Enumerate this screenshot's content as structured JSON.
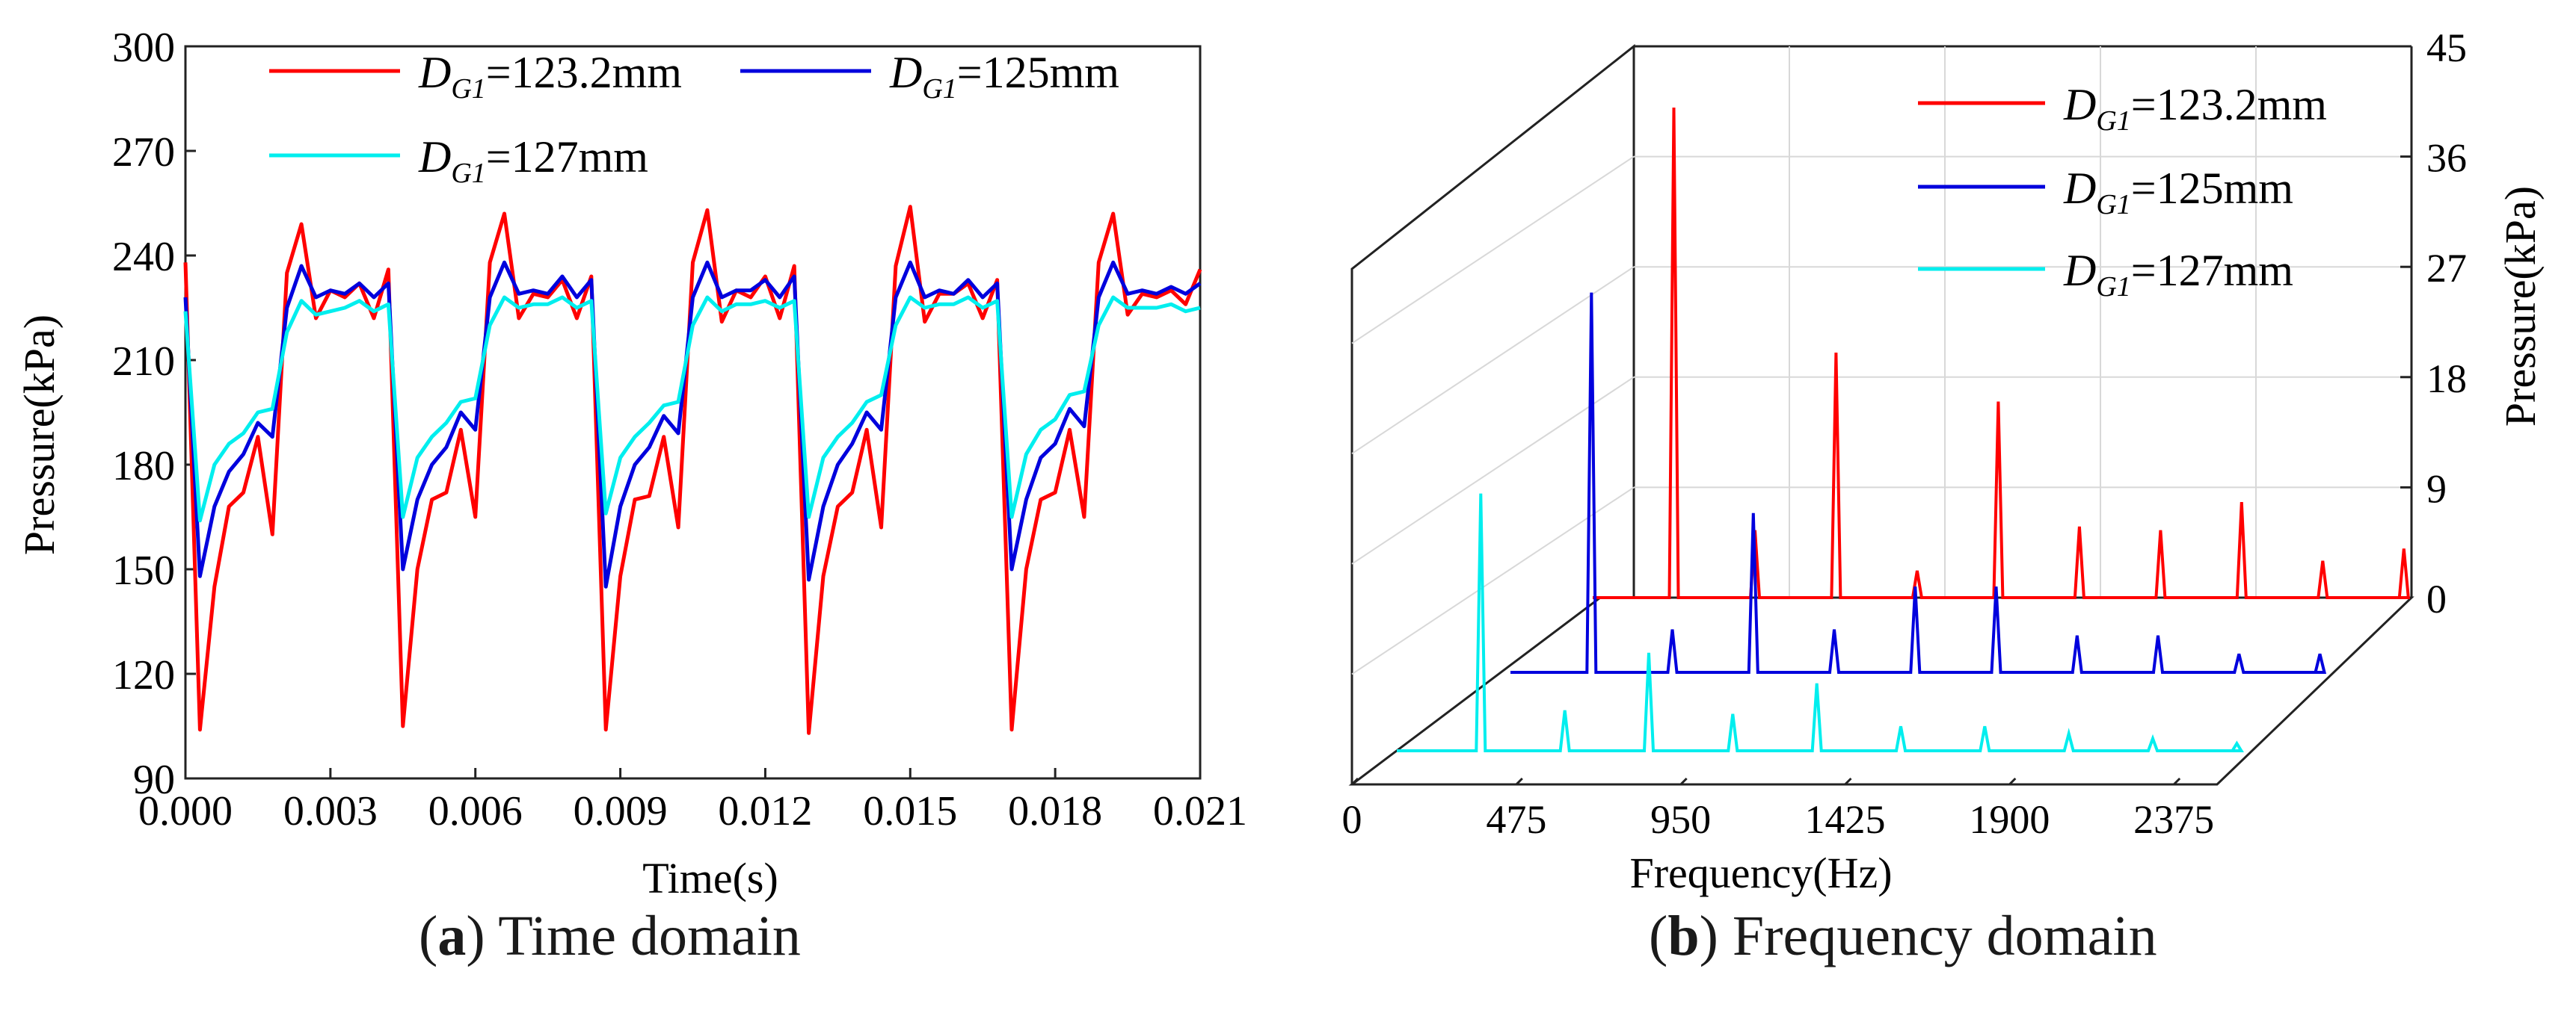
{
  "panel_a": {
    "caption_letter": "a",
    "caption_text": " Time domain",
    "legend_sub": "G1",
    "legend_labels": [
      "=123.2mm",
      "=125mm",
      "=127mm"
    ]
  },
  "panel_b": {
    "caption_letter": "b",
    "caption_text": " Frequency domain",
    "legend_sub": "G1",
    "legend_labels": [
      "=123.2mm",
      "=125mm",
      "=127mm"
    ]
  },
  "chart_data": [
    {
      "type": "line",
      "title": "",
      "xlabel": "Time(s)",
      "ylabel": "Pressure(kPa)",
      "xlim": [
        0,
        0.021
      ],
      "ylim": [
        90,
        300
      ],
      "xticks": [
        "0.000",
        "0.003",
        "0.006",
        "0.009",
        "0.012",
        "0.015",
        "0.018",
        "0.021"
      ],
      "yticks": [
        "90",
        "120",
        "150",
        "180",
        "210",
        "240",
        "270",
        "300"
      ],
      "legend_position": "top-left",
      "series": [
        {
          "name": "DG1=123.2mm",
          "color": "#ff0000",
          "x": [
            0,
            0.0003,
            0.0006,
            0.0009,
            0.0012,
            0.0015,
            0.0018,
            0.0021,
            0.0024,
            0.0027,
            0.003,
            0.0033,
            0.0036,
            0.0039,
            0.0042,
            0.0045,
            0.0048,
            0.0051,
            0.0054,
            0.0057,
            0.006,
            0.0063,
            0.0066,
            0.0069,
            0.0072,
            0.0075,
            0.0078,
            0.0081,
            0.0084,
            0.0087,
            0.009,
            0.0093,
            0.0096,
            0.0099,
            0.0102,
            0.0105,
            0.0108,
            0.0111,
            0.0114,
            0.0117,
            0.012,
            0.0123,
            0.0126,
            0.0129,
            0.0132,
            0.0135,
            0.0138,
            0.0141,
            0.0144,
            0.0147,
            0.015,
            0.0153,
            0.0156,
            0.0159,
            0.0162,
            0.0165,
            0.0168,
            0.0171,
            0.0174,
            0.0177,
            0.018,
            0.0183,
            0.0186,
            0.0189,
            0.0192,
            0.0195,
            0.0198,
            0.0201,
            0.0204,
            0.0207,
            0.021
          ],
          "values": [
            238,
            104,
            145,
            168,
            172,
            188,
            160,
            235,
            249,
            222,
            230,
            228,
            232,
            222,
            236,
            105,
            150,
            170,
            172,
            190,
            165,
            238,
            252,
            222,
            229,
            228,
            233,
            222,
            234,
            104,
            148,
            170,
            171,
            188,
            162,
            238,
            253,
            221,
            230,
            228,
            234,
            222,
            237,
            103,
            148,
            168,
            172,
            190,
            162,
            237,
            254,
            221,
            229,
            229,
            232,
            222,
            233,
            104,
            150,
            170,
            172,
            190,
            165,
            238,
            252,
            223,
            229,
            228,
            230,
            226,
            236
          ]
        },
        {
          "name": "DG1=125mm",
          "color": "#0000dd",
          "x": [
            0,
            0.0003,
            0.0006,
            0.0009,
            0.0012,
            0.0015,
            0.0018,
            0.0021,
            0.0024,
            0.0027,
            0.003,
            0.0033,
            0.0036,
            0.0039,
            0.0042,
            0.0045,
            0.0048,
            0.0051,
            0.0054,
            0.0057,
            0.006,
            0.0063,
            0.0066,
            0.0069,
            0.0072,
            0.0075,
            0.0078,
            0.0081,
            0.0084,
            0.0087,
            0.009,
            0.0093,
            0.0096,
            0.0099,
            0.0102,
            0.0105,
            0.0108,
            0.0111,
            0.0114,
            0.0117,
            0.012,
            0.0123,
            0.0126,
            0.0129,
            0.0132,
            0.0135,
            0.0138,
            0.0141,
            0.0144,
            0.0147,
            0.015,
            0.0153,
            0.0156,
            0.0159,
            0.0162,
            0.0165,
            0.0168,
            0.0171,
            0.0174,
            0.0177,
            0.018,
            0.0183,
            0.0186,
            0.0189,
            0.0192,
            0.0195,
            0.0198,
            0.0201,
            0.0204,
            0.0207,
            0.021
          ],
          "values": [
            228,
            148,
            168,
            178,
            183,
            192,
            188,
            225,
            237,
            228,
            230,
            229,
            232,
            228,
            232,
            150,
            170,
            180,
            185,
            195,
            190,
            228,
            238,
            229,
            230,
            229,
            234,
            228,
            233,
            145,
            168,
            180,
            185,
            194,
            189,
            228,
            238,
            228,
            230,
            230,
            233,
            228,
            234,
            147,
            168,
            180,
            186,
            195,
            190,
            228,
            238,
            228,
            230,
            229,
            233,
            228,
            232,
            150,
            170,
            182,
            186,
            196,
            191,
            228,
            238,
            229,
            230,
            229,
            231,
            229,
            232
          ]
        },
        {
          "name": "DG1=127mm",
          "color": "#00eeee",
          "x": [
            0,
            0.0003,
            0.0006,
            0.0009,
            0.0012,
            0.0015,
            0.0018,
            0.0021,
            0.0024,
            0.0027,
            0.003,
            0.0033,
            0.0036,
            0.0039,
            0.0042,
            0.0045,
            0.0048,
            0.0051,
            0.0054,
            0.0057,
            0.006,
            0.0063,
            0.0066,
            0.0069,
            0.0072,
            0.0075,
            0.0078,
            0.0081,
            0.0084,
            0.0087,
            0.009,
            0.0093,
            0.0096,
            0.0099,
            0.0102,
            0.0105,
            0.0108,
            0.0111,
            0.0114,
            0.0117,
            0.012,
            0.0123,
            0.0126,
            0.0129,
            0.0132,
            0.0135,
            0.0138,
            0.0141,
            0.0144,
            0.0147,
            0.015,
            0.0153,
            0.0156,
            0.0159,
            0.0162,
            0.0165,
            0.0168,
            0.0171,
            0.0174,
            0.0177,
            0.018,
            0.0183,
            0.0186,
            0.0189,
            0.0192,
            0.0195,
            0.0198,
            0.0201,
            0.0204,
            0.0207,
            0.021
          ],
          "values": [
            224,
            164,
            180,
            186,
            189,
            195,
            196,
            218,
            227,
            223,
            224,
            225,
            227,
            224,
            226,
            165,
            182,
            188,
            192,
            198,
            199,
            220,
            228,
            225,
            226,
            226,
            228,
            225,
            227,
            166,
            182,
            188,
            192,
            197,
            198,
            220,
            228,
            224,
            226,
            226,
            227,
            225,
            227,
            165,
            182,
            188,
            192,
            198,
            200,
            220,
            228,
            225,
            226,
            226,
            228,
            225,
            227,
            165,
            183,
            190,
            193,
            200,
            201,
            220,
            228,
            225,
            225,
            225,
            226,
            224,
            225
          ]
        }
      ]
    },
    {
      "type": "line",
      "title": "",
      "xlabel": "Frequency(Hz)",
      "ylabel": "Pressure(kPa)",
      "xlim": [
        0,
        2500
      ],
      "ylim": [
        0,
        45
      ],
      "xticks": [
        "0",
        "475",
        "950",
        "1425",
        "1900",
        "2375"
      ],
      "yticks": [
        "0",
        "9",
        "18",
        "27",
        "36",
        "45"
      ],
      "legend_position": "top-right",
      "series": [
        {
          "name": "DG1=123.2mm",
          "color": "#ff0000",
          "peaks_hz": [
            238,
            476,
            714,
            952,
            1190,
            1428,
            1666,
            1904,
            2142,
            2380
          ],
          "peaks_kpa": [
            40,
            5.5,
            20,
            2.2,
            16,
            5.8,
            5.5,
            7.8,
            3,
            4
          ]
        },
        {
          "name": "DG1=125mm",
          "color": "#0000dd",
          "peaks_hz": [
            242,
            484,
            726,
            968,
            1210,
            1452,
            1694,
            1936,
            2178,
            2420
          ],
          "peaks_kpa": [
            31,
            3.5,
            13,
            3.5,
            7,
            7,
            3,
            3,
            1.5,
            1.5
          ]
        },
        {
          "name": "DG1=127mm",
          "color": "#00eeee",
          "peaks_hz": [
            246,
            492,
            738,
            984,
            1230,
            1476,
            1722,
            1968,
            2214,
            2460
          ],
          "peaks_kpa": [
            21,
            3.3,
            8,
            3,
            5.5,
            2,
            2,
            1.4,
            1,
            0.6
          ]
        }
      ]
    }
  ]
}
